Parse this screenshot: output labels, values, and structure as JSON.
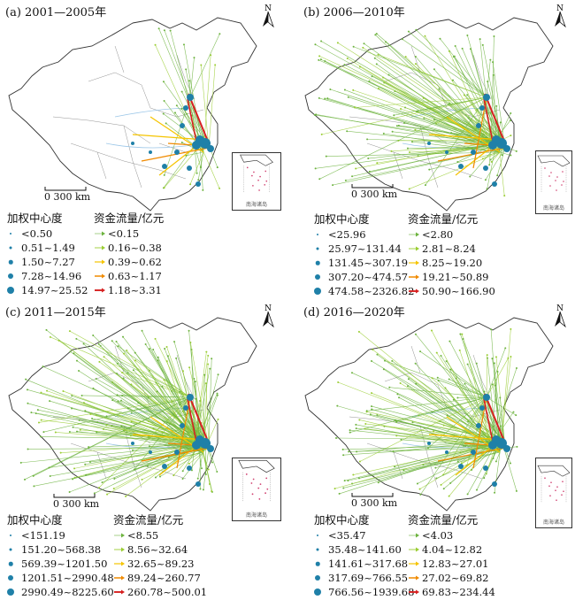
{
  "north_label": "N",
  "scale_label": "0  300 km",
  "inset_label": "南海诸岛",
  "legend_node_title": "加权中心度",
  "legend_flow_title": "资金流量/亿元",
  "colors": {
    "node": "#1f80a8",
    "flow": [
      "#6db33f",
      "#9acd32",
      "#f5c400",
      "#f08a00",
      "#d62020"
    ],
    "border": "#333333",
    "river": "#9cc7e8"
  },
  "panels": [
    {
      "title": "(a) 2001—2005年",
      "node_classes": [
        "<0.50",
        "0.51~1.49",
        "1.50~7.27",
        "7.28~14.96",
        "14.97~25.52"
      ],
      "flow_classes": [
        "<0.15",
        "0.16~0.38",
        "0.39~0.62",
        "0.63~1.17",
        "1.18~3.31"
      ]
    },
    {
      "title": "(b) 2006—2010年",
      "node_classes": [
        "<25.96",
        "25.97~131.44",
        "131.45~307.19",
        "307.20~474.57",
        "474.58~2326.82"
      ],
      "flow_classes": [
        "<2.80",
        "2.81~8.24",
        "8.25~19.20",
        "19.21~50.89",
        "50.90~166.90"
      ]
    },
    {
      "title": "(c) 2011—2015年",
      "node_classes": [
        "<151.19",
        "151.20~568.38",
        "569.39~1201.50",
        "1201.51~2990.48",
        "2990.49~8225.60"
      ],
      "flow_classes": [
        "<8.55",
        "8.56~32.64",
        "32.65~89.23",
        "89.24~260.77",
        "260.78~500.01"
      ]
    },
    {
      "title": "(d) 2016—2020年",
      "node_classes": [
        "<35.47",
        "35.48~141.60",
        "141.61~317.68",
        "317.69~766.55",
        "766.56~1939.68"
      ],
      "flow_classes": [
        "<4.03",
        "4.04~12.82",
        "12.83~27.01",
        "27.02~69.82",
        "69.83~234.44"
      ]
    }
  ]
}
